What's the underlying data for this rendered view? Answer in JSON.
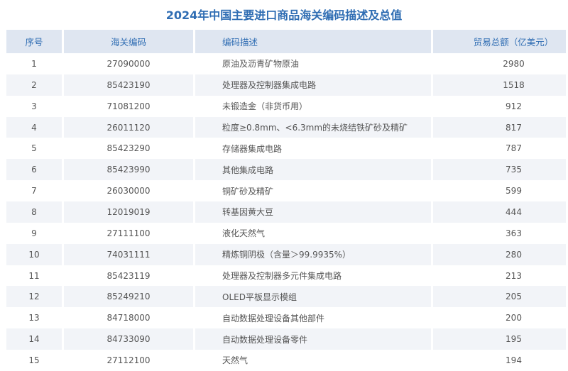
{
  "title": "2024年中国主要进口商品海关编码描述及总值",
  "headers": [
    "序号",
    "海关编码",
    "编码描述",
    "贸易总额（亿美元）"
  ],
  "rows": [
    [
      "1",
      "27090000",
      "原油及沥青矿物原油",
      "2980"
    ],
    [
      "2",
      "85423190",
      "处理器及控制器集成电路",
      "1518"
    ],
    [
      "3",
      "71081200",
      "未锻造金（非货币用）",
      "912"
    ],
    [
      "4",
      "26011120",
      "粒度≥0.8mm、<6.3mm的未烧结铁矿砂及精矿",
      "817"
    ],
    [
      "5",
      "85423290",
      "存储器集成电路",
      "787"
    ],
    [
      "6",
      "85423990",
      "其他集成电路",
      "735"
    ],
    [
      "7",
      "26030000",
      "铜矿砂及精矿",
      "599"
    ],
    [
      "8",
      "12019019",
      "转基因黄大豆",
      "444"
    ],
    [
      "9",
      "27111100",
      "液化天然气",
      "363"
    ],
    [
      "10",
      "74031111",
      "精炼铜阴极（含量＞99.9935%）",
      "280"
    ],
    [
      "11",
      "85423119",
      "处理器及控制器多元件集成电路",
      "213"
    ],
    [
      "12",
      "85249210",
      "OLED平板显示模组",
      "205"
    ],
    [
      "13",
      "84718000",
      "自动数据处理设备其他部件",
      "200"
    ],
    [
      "14",
      "84733090",
      "自动数据处理设备零件",
      "195"
    ],
    [
      "15",
      "27112100",
      "天然气",
      "194"
    ]
  ],
  "colors": {
    "accent": "#2f6db3",
    "header_bg": "#dfe6f1",
    "stripe": "#f2f4f8"
  }
}
